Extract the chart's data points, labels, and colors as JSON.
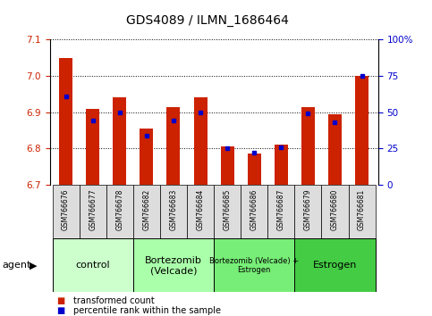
{
  "title": "GDS4089 / ILMN_1686464",
  "samples": [
    "GSM766676",
    "GSM766677",
    "GSM766678",
    "GSM766682",
    "GSM766683",
    "GSM766684",
    "GSM766685",
    "GSM766686",
    "GSM766687",
    "GSM766679",
    "GSM766680",
    "GSM766681"
  ],
  "red_values": [
    7.05,
    6.91,
    6.94,
    6.855,
    6.915,
    6.94,
    6.805,
    6.785,
    6.81,
    6.915,
    6.895,
    7.0
  ],
  "blue_values_pct": [
    61,
    44,
    50,
    34,
    44,
    50,
    25,
    22,
    26,
    49,
    43,
    75
  ],
  "ylim_left": [
    6.7,
    7.1
  ],
  "ylim_right": [
    0,
    100
  ],
  "yticks_left": [
    6.7,
    6.8,
    6.9,
    7.0,
    7.1
  ],
  "yticks_right": [
    0,
    25,
    50,
    75,
    100
  ],
  "ytick_labels_right": [
    "0",
    "25",
    "50",
    "75",
    "100%"
  ],
  "groups": [
    {
      "label": "control",
      "start": 0,
      "end": 3,
      "color": "#ccffcc",
      "fontsize": 8
    },
    {
      "label": "Bortezomib\n(Velcade)",
      "start": 3,
      "end": 6,
      "color": "#aaffaa",
      "fontsize": 8
    },
    {
      "label": "Bortezomib (Velcade) +\nEstrogen",
      "start": 6,
      "end": 9,
      "color": "#77ee77",
      "fontsize": 6
    },
    {
      "label": "Estrogen",
      "start": 9,
      "end": 12,
      "color": "#44cc44",
      "fontsize": 8
    }
  ],
  "agent_label": "agent",
  "legend_red": "transformed count",
  "legend_blue": "percentile rank within the sample",
  "bar_width": 0.5,
  "bar_color_red": "#cc2200",
  "bar_color_blue": "#0000cc",
  "tick_color_left": "#cc2200",
  "tick_color_right": "#0000cc"
}
